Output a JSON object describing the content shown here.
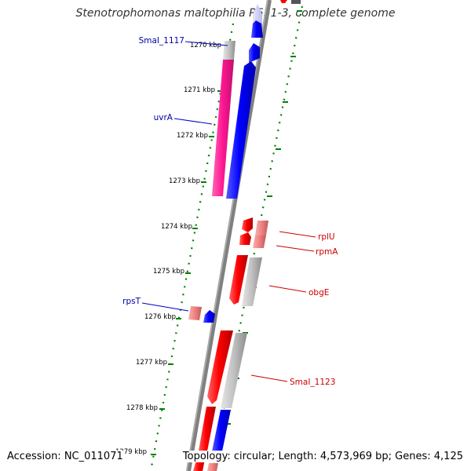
{
  "title": "Stenotrophomonas maltophilia R551-3, complete genome",
  "footer": {
    "accession": "Accession: NC_011071",
    "summary": "Topology: circular; Length: 4,573,969 bp; Genes: 4,125"
  },
  "colors": {
    "backbone": "#808080",
    "forward_protein": "#0000ff",
    "reverse_protein": "#ff0000",
    "ruler_tick": "#008000",
    "pseudo_highlight": "#ff1493",
    "forward_label": "#0000aa",
    "reverse_label": "#cc0000"
  },
  "ruler": {
    "unit": "kbp",
    "labels": [
      "1270 kbp",
      "1271 kbp",
      "1272 kbp",
      "1273 kbp",
      "1274 kbp",
      "1275 kbp",
      "1276 kbp",
      "1277 kbp",
      "1278 kbp",
      "1279 kbp"
    ]
  },
  "gene_labels": {
    "left": [
      "SmaI_1117",
      "uvrA",
      "rpsT"
    ],
    "right": [
      "rplU",
      "rpmA",
      "obgE",
      "SmaI_1123"
    ]
  }
}
